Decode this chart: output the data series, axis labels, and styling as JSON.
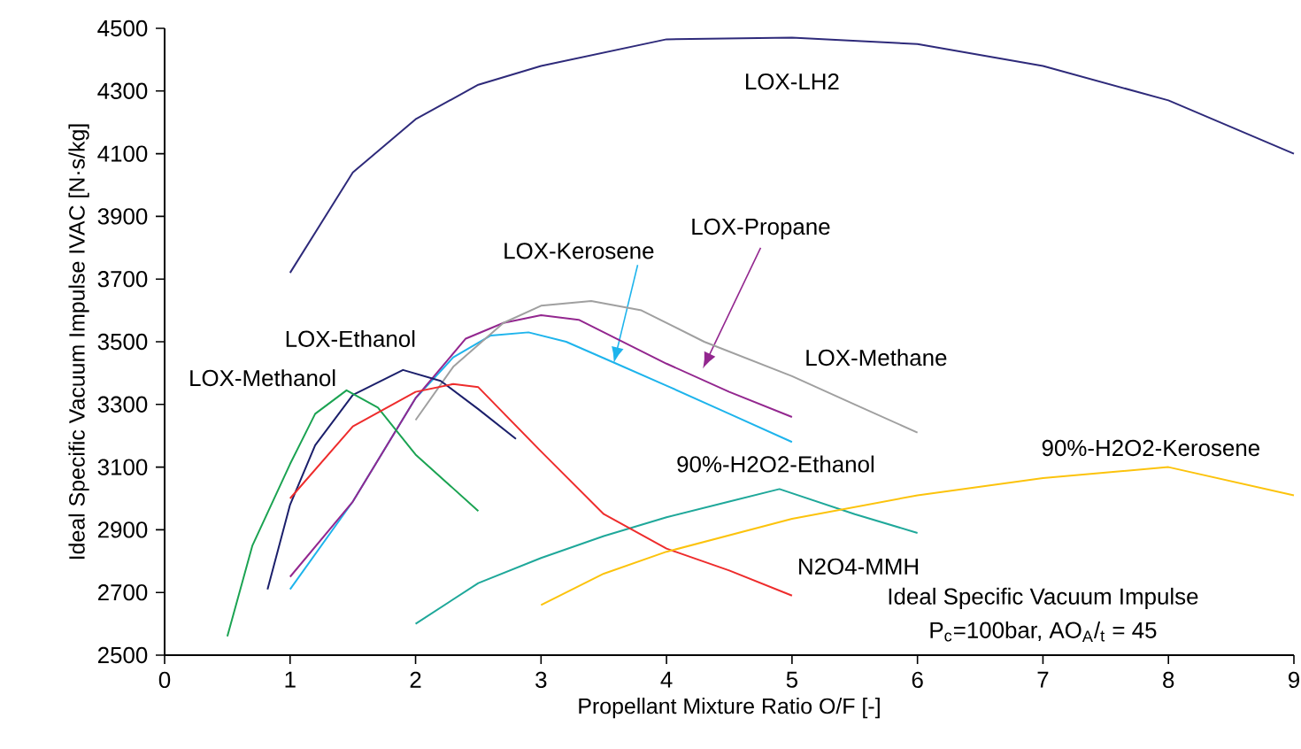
{
  "chart_data": {
    "type": "line",
    "xlabel": "Propellant Mixture Ratio O/F [-]",
    "ylabel": "Ideal Specific Vacuum Impulse IVAC [N·s/kg]",
    "xlim": [
      0,
      9
    ],
    "ylim": [
      2500,
      4500
    ],
    "xticks": [
      0,
      1,
      2,
      3,
      4,
      5,
      6,
      7,
      8,
      9
    ],
    "yticks": [
      2500,
      2700,
      2900,
      3100,
      3300,
      3500,
      3700,
      3900,
      4100,
      4300,
      4500
    ],
    "grid": false,
    "annotations": [
      "Ideal Specific Vacuum Impulse",
      "P$_{c}$=100bar, AO$_{A}$/$_{t}$ = 45"
    ],
    "series": [
      {
        "name": "LOX-LH2",
        "color": "#2e2a7a",
        "x": [
          1.0,
          1.5,
          2.0,
          2.5,
          3.0,
          4.0,
          5.0,
          6.0,
          7.0,
          8.0,
          9.0
        ],
        "values": [
          3720,
          4040,
          4210,
          4320,
          4380,
          4465,
          4470,
          4450,
          4380,
          4270,
          4100
        ]
      },
      {
        "name": "LOX-Kerosene",
        "color": "#1eb4ec",
        "x": [
          1.0,
          1.5,
          2.0,
          2.3,
          2.6,
          2.9,
          3.2,
          3.6,
          4.0,
          4.5,
          5.0
        ],
        "values": [
          2710,
          2990,
          3320,
          3450,
          3520,
          3530,
          3500,
          3430,
          3360,
          3270,
          3180
        ]
      },
      {
        "name": "LOX-Propane",
        "color": "#93278f",
        "x": [
          1.0,
          1.5,
          2.0,
          2.4,
          2.7,
          3.0,
          3.3,
          4.0,
          4.5,
          5.0
        ],
        "values": [
          2750,
          2990,
          3320,
          3510,
          3560,
          3585,
          3570,
          3430,
          3340,
          3260
        ]
      },
      {
        "name": "LOX-Methane",
        "color": "#a0a0a0",
        "x": [
          2.0,
          2.3,
          2.7,
          3.0,
          3.4,
          3.8,
          4.3,
          5.0,
          5.5,
          6.0
        ],
        "values": [
          3250,
          3420,
          3560,
          3615,
          3630,
          3600,
          3500,
          3390,
          3300,
          3210
        ]
      },
      {
        "name": "LOX-Ethanol",
        "color": "#1b1f6b",
        "x": [
          0.82,
          1.0,
          1.2,
          1.5,
          1.9,
          2.2,
          2.5,
          2.8
        ],
        "values": [
          2710,
          2980,
          3170,
          3330,
          3410,
          3375,
          3285,
          3190
        ]
      },
      {
        "name": "LOX-Methanol",
        "color": "#1ba352",
        "x": [
          0.5,
          0.7,
          1.0,
          1.2,
          1.45,
          1.7,
          2.0,
          2.5
        ],
        "values": [
          2560,
          2850,
          3110,
          3270,
          3345,
          3290,
          3140,
          2960
        ]
      },
      {
        "name": "90%-H2O2-Ethanol",
        "color": "#1fa89a",
        "x": [
          2.0,
          2.5,
          3.0,
          3.5,
          4.0,
          4.5,
          4.9,
          5.5,
          6.0
        ],
        "values": [
          2600,
          2730,
          2810,
          2880,
          2940,
          2990,
          3030,
          2950,
          2890
        ]
      },
      {
        "name": "N2O4-MMH",
        "color": "#ee2c2c",
        "x": [
          1.0,
          1.5,
          2.0,
          2.3,
          2.5,
          3.0,
          3.5,
          4.0,
          4.5,
          5.0
        ],
        "values": [
          3000,
          3230,
          3340,
          3365,
          3355,
          3150,
          2950,
          2840,
          2770,
          2690
        ]
      },
      {
        "name": "90%-H2O2-Kerosene",
        "color": "#fcc30c",
        "x": [
          3.0,
          3.5,
          4.0,
          5.0,
          6.0,
          7.0,
          8.0,
          9.0
        ],
        "values": [
          2660,
          2760,
          2830,
          2935,
          3010,
          3065,
          3100,
          3010
        ]
      }
    ]
  }
}
